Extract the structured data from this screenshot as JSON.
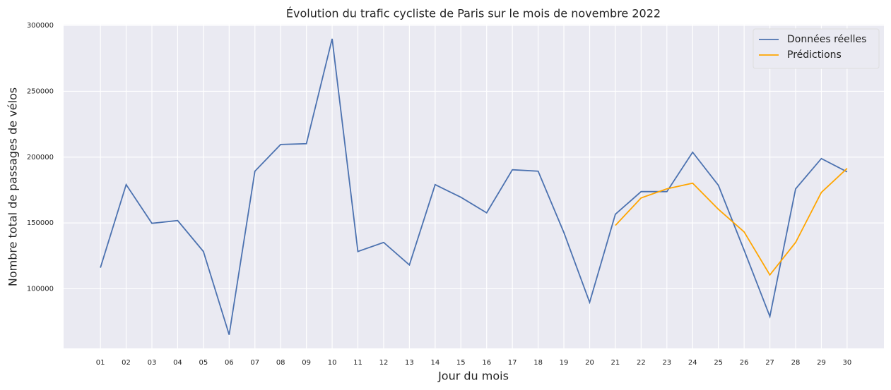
{
  "chart_data": {
    "type": "line",
    "title": "Évolution du trafic cycliste de Paris sur le mois de novembre 2022",
    "x_label": "Jour du mois",
    "y_label": "Nombre total de passages de vélos",
    "categories": [
      "01",
      "02",
      "03",
      "04",
      "05",
      "06",
      "07",
      "08",
      "09",
      "10",
      "11",
      "12",
      "13",
      "14",
      "15",
      "16",
      "17",
      "18",
      "19",
      "20",
      "21",
      "22",
      "23",
      "24",
      "25",
      "26",
      "27",
      "28",
      "29",
      "30"
    ],
    "series": [
      {
        "name": "Données réelles",
        "color": "#4c72b0",
        "values": [
          116000,
          179100,
          149700,
          151800,
          128300,
          65100,
          189300,
          209600,
          210200,
          289900,
          128300,
          135200,
          118100,
          179100,
          169500,
          157700,
          190400,
          189300,
          142700,
          89700,
          156600,
          173800,
          173800,
          203700,
          178600,
          129300,
          79000,
          175900,
          198900,
          188800
        ]
      },
      {
        "name": "Prédictions",
        "color": "#ffa500",
        "values": [
          null,
          null,
          null,
          null,
          null,
          null,
          null,
          null,
          null,
          null,
          null,
          null,
          null,
          null,
          null,
          null,
          null,
          null,
          null,
          null,
          148100,
          169000,
          175900,
          180200,
          160400,
          143200,
          110500,
          135200,
          173200,
          191400
        ]
      }
    ],
    "ylim": [
      54700,
      300600
    ],
    "yticks": [
      100000,
      150000,
      200000,
      250000,
      300000
    ],
    "grid": true,
    "legend": "upper right"
  }
}
